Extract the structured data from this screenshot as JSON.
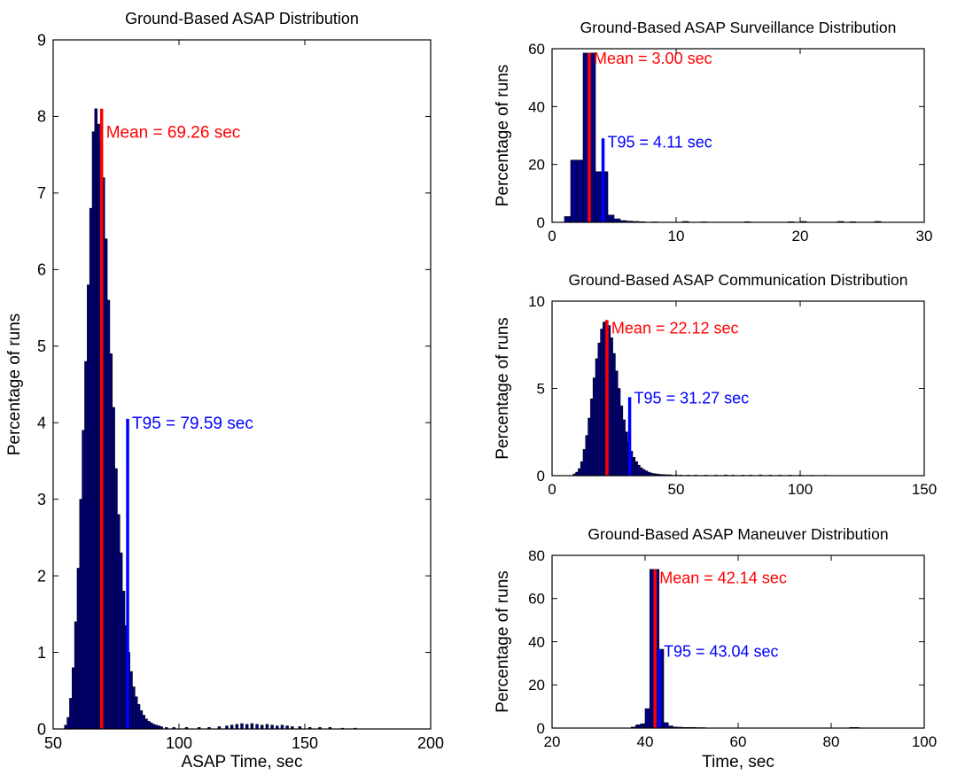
{
  "colors": {
    "bar_fill": "#000080",
    "bar_edge": "#000000",
    "mean": "#ff0000",
    "t95": "#0000ff",
    "axis": "#000000",
    "background": "#ffffff"
  },
  "chart_data": [
    {
      "type": "bar",
      "subtype": "histogram",
      "title": "Ground-Based ASAP Distribution",
      "xlabel": "ASAP Time, sec",
      "ylabel": "Percentage of runs",
      "xlim": [
        50,
        200
      ],
      "ylim": [
        0,
        9
      ],
      "xticks": [
        50,
        100,
        150,
        200
      ],
      "yticks": [
        0,
        1,
        2,
        3,
        4,
        5,
        6,
        7,
        8,
        9
      ],
      "bin_width": 1,
      "bins": [
        [
          55,
          0.05
        ],
        [
          56,
          0.15
        ],
        [
          57,
          0.4
        ],
        [
          58,
          0.8
        ],
        [
          59,
          1.4
        ],
        [
          60,
          2.1
        ],
        [
          61,
          3.0
        ],
        [
          62,
          3.9
        ],
        [
          63,
          4.8
        ],
        [
          64,
          5.8
        ],
        [
          65,
          6.8
        ],
        [
          66,
          7.8
        ],
        [
          67,
          8.1
        ],
        [
          68,
          7.9
        ],
        [
          69,
          7.7
        ],
        [
          70,
          7.2
        ],
        [
          71,
          6.4
        ],
        [
          72,
          5.6
        ],
        [
          73,
          4.9
        ],
        [
          74,
          4.2
        ],
        [
          75,
          3.4
        ],
        [
          76,
          2.8
        ],
        [
          77,
          2.3
        ],
        [
          78,
          1.8
        ],
        [
          79,
          1.35
        ],
        [
          80,
          1.0
        ],
        [
          81,
          0.75
        ],
        [
          82,
          0.55
        ],
        [
          83,
          0.42
        ],
        [
          84,
          0.32
        ],
        [
          85,
          0.24
        ],
        [
          86,
          0.18
        ],
        [
          87,
          0.13
        ],
        [
          88,
          0.1
        ],
        [
          89,
          0.08
        ],
        [
          90,
          0.06
        ],
        [
          91,
          0.05
        ],
        [
          92,
          0.04
        ],
        [
          93,
          0.03
        ],
        [
          95,
          0.02
        ],
        [
          98,
          0.02
        ],
        [
          103,
          0.02
        ],
        [
          108,
          0.02
        ],
        [
          112,
          0.02
        ],
        [
          116,
          0.03
        ],
        [
          119,
          0.04
        ],
        [
          121,
          0.05
        ],
        [
          123,
          0.06
        ],
        [
          125,
          0.07
        ],
        [
          127,
          0.06
        ],
        [
          129,
          0.07
        ],
        [
          131,
          0.06
        ],
        [
          133,
          0.05
        ],
        [
          135,
          0.06
        ],
        [
          137,
          0.05
        ],
        [
          139,
          0.04
        ],
        [
          141,
          0.05
        ],
        [
          143,
          0.04
        ],
        [
          145,
          0.03
        ],
        [
          148,
          0.03
        ],
        [
          152,
          0.02
        ],
        [
          156,
          0.02
        ],
        [
          160,
          0.02
        ],
        [
          165,
          0.01
        ],
        [
          170,
          0.01
        ]
      ],
      "mean": {
        "x": 69.26,
        "height": 8.1,
        "label": "Mean = 69.26 sec",
        "label_y": 7.8
      },
      "t95": {
        "x": 79.59,
        "height": 4.05,
        "label": "T95 = 79.59 sec",
        "label_y": 4.0
      }
    },
    {
      "type": "bar",
      "subtype": "histogram",
      "title": "Ground-Based ASAP Surveillance Distribution",
      "xlabel": "",
      "ylabel": "Percentage of runs",
      "xlim": [
        0,
        30
      ],
      "ylim": [
        0,
        60
      ],
      "xticks": [
        0,
        10,
        20,
        30
      ],
      "yticks": [
        0,
        20,
        40,
        60
      ],
      "bin_width": 0.5,
      "bins": [
        [
          1.25,
          2.0
        ],
        [
          1.75,
          21.5
        ],
        [
          2.25,
          21.5
        ],
        [
          2.75,
          58.5
        ],
        [
          3.25,
          58.5
        ],
        [
          3.75,
          17.5
        ],
        [
          4.25,
          17.5
        ],
        [
          4.75,
          2.5
        ],
        [
          5.25,
          1.2
        ],
        [
          5.75,
          0.6
        ],
        [
          6.25,
          0.4
        ],
        [
          6.75,
          0.3
        ],
        [
          7.25,
          0.2
        ],
        [
          8.25,
          0.15
        ],
        [
          10.75,
          0.3
        ],
        [
          12.25,
          0.15
        ],
        [
          15.75,
          0.2
        ],
        [
          19.25,
          0.2
        ],
        [
          20.25,
          0.3
        ],
        [
          23.25,
          0.3
        ],
        [
          24.25,
          0.2
        ],
        [
          26.25,
          0.3
        ]
      ],
      "mean": {
        "x": 3.0,
        "height": 58.5,
        "label": "Mean = 3.00 sec",
        "label_y": 57
      },
      "t95": {
        "x": 4.11,
        "height": 29,
        "label": "T95 = 4.11 sec",
        "label_y": 28
      }
    },
    {
      "type": "bar",
      "subtype": "histogram",
      "title": "Ground-Based ASAP Communication Distribution",
      "xlabel": "",
      "ylabel": "Percentage of runs",
      "xlim": [
        0,
        150
      ],
      "ylim": [
        0,
        10
      ],
      "xticks": [
        0,
        50,
        100,
        150
      ],
      "yticks": [
        0,
        5,
        10
      ],
      "bin_width": 1,
      "bins": [
        [
          9,
          0.1
        ],
        [
          10,
          0.2
        ],
        [
          11,
          0.4
        ],
        [
          12,
          0.8
        ],
        [
          13,
          1.5
        ],
        [
          14,
          2.3
        ],
        [
          15,
          3.3
        ],
        [
          16,
          4.4
        ],
        [
          17,
          5.6
        ],
        [
          18,
          6.7
        ],
        [
          19,
          7.6
        ],
        [
          20,
          8.4
        ],
        [
          21,
          8.8
        ],
        [
          22,
          8.9
        ],
        [
          23,
          8.6
        ],
        [
          24,
          7.9
        ],
        [
          25,
          7.0
        ],
        [
          26,
          6.0
        ],
        [
          27,
          5.0
        ],
        [
          28,
          4.0
        ],
        [
          29,
          3.2
        ],
        [
          30,
          2.5
        ],
        [
          31,
          1.9
        ],
        [
          32,
          1.4
        ],
        [
          33,
          1.05
        ],
        [
          34,
          0.8
        ],
        [
          35,
          0.6
        ],
        [
          36,
          0.45
        ],
        [
          37,
          0.35
        ],
        [
          38,
          0.27
        ],
        [
          39,
          0.2
        ],
        [
          40,
          0.15
        ],
        [
          41,
          0.12
        ],
        [
          42,
          0.1
        ],
        [
          43,
          0.08
        ],
        [
          44,
          0.07
        ],
        [
          45,
          0.06
        ],
        [
          46,
          0.05
        ],
        [
          47,
          0.05
        ],
        [
          48,
          0.04
        ],
        [
          50,
          0.04
        ],
        [
          52,
          0.03
        ],
        [
          55,
          0.03
        ],
        [
          58,
          0.03
        ],
        [
          62,
          0.03
        ],
        [
          66,
          0.03
        ],
        [
          70,
          0.04
        ],
        [
          73,
          0.03
        ],
        [
          77,
          0.03
        ],
        [
          80,
          0.03
        ],
        [
          84,
          0.04
        ],
        [
          88,
          0.03
        ],
        [
          92,
          0.03
        ],
        [
          96,
          0.03
        ],
        [
          100,
          0.03
        ],
        [
          105,
          0.02
        ],
        [
          110,
          0.02
        ]
      ],
      "mean": {
        "x": 22.12,
        "height": 8.9,
        "label": "Mean = 22.12 sec",
        "label_y": 8.5
      },
      "t95": {
        "x": 31.27,
        "height": 4.5,
        "label": "T95 = 31.27 sec",
        "label_y": 4.5
      }
    },
    {
      "type": "bar",
      "subtype": "histogram",
      "title": "Ground-Based ASAP Maneuver Distribution",
      "xlabel": "Time, sec",
      "ylabel": "Percentage of runs",
      "xlim": [
        20,
        100
      ],
      "ylim": [
        0,
        80
      ],
      "xticks": [
        20,
        40,
        60,
        80,
        100
      ],
      "yticks": [
        0,
        20,
        40,
        60,
        80
      ],
      "bin_width": 1,
      "bins": [
        [
          37.5,
          0.5
        ],
        [
          38.5,
          1.5
        ],
        [
          39.5,
          2.0
        ],
        [
          40.5,
          9.0
        ],
        [
          41.5,
          73.5
        ],
        [
          42.5,
          73.5
        ],
        [
          43.5,
          36.5
        ],
        [
          44.5,
          2.5
        ],
        [
          45.5,
          1.0
        ],
        [
          46.5,
          0.5
        ],
        [
          47.5,
          0.4
        ],
        [
          48.5,
          0.3
        ],
        [
          49.5,
          0.3
        ],
        [
          50.5,
          0.3
        ],
        [
          51.5,
          0.2
        ],
        [
          52.5,
          0.2
        ],
        [
          84.5,
          0.3
        ],
        [
          85.5,
          0.3
        ]
      ],
      "mean": {
        "x": 42.14,
        "height": 73.5,
        "label": "Mean = 42.14 sec",
        "label_y": 70
      },
      "t95": {
        "x": 43.04,
        "height": 36.5,
        "label": "T95 = 43.04 sec",
        "label_y": 36
      }
    }
  ]
}
